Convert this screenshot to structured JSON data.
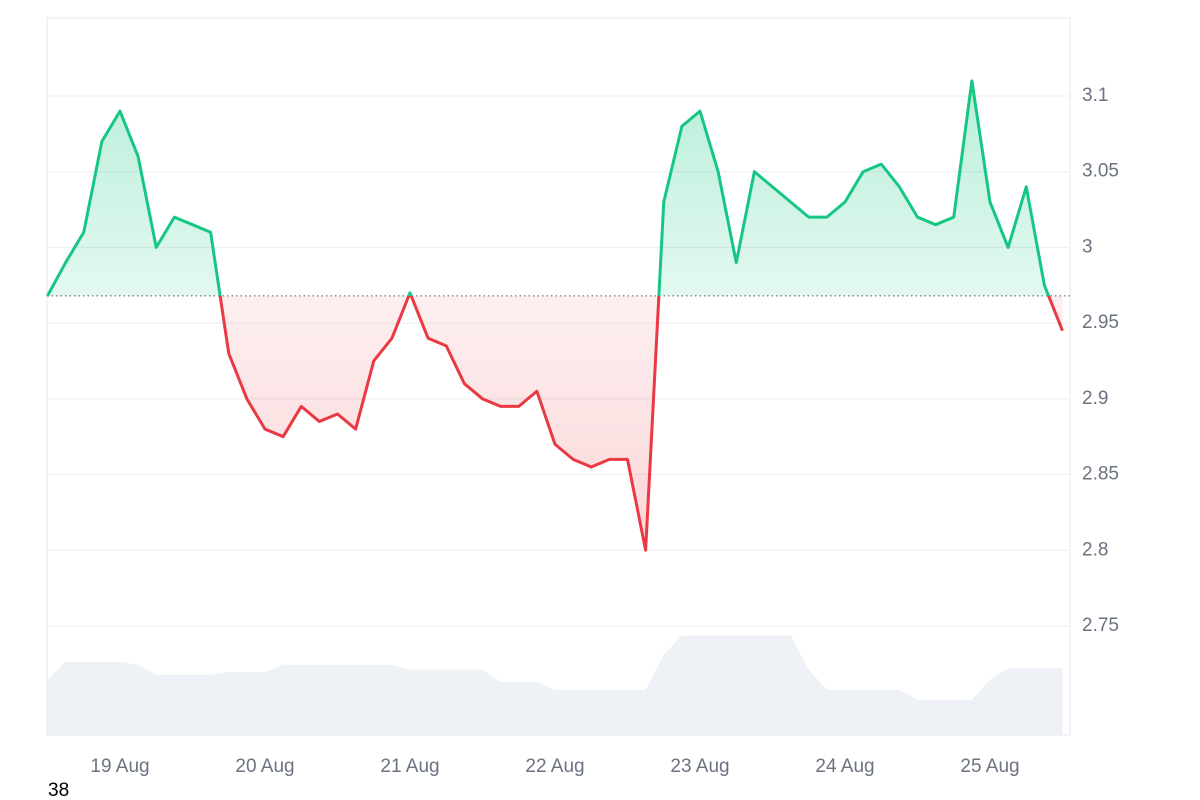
{
  "chart_data": {
    "type": "line",
    "categories": [
      null,
      null,
      null,
      null,
      "19 Aug",
      null,
      null,
      null,
      null,
      null,
      null,
      null,
      "20 Aug",
      null,
      null,
      null,
      null,
      null,
      null,
      null,
      "21 Aug",
      null,
      null,
      null,
      null,
      null,
      null,
      null,
      "22 Aug",
      null,
      null,
      null,
      null,
      null,
      null,
      null,
      "23 Aug",
      null,
      null,
      null,
      null,
      null,
      null,
      null,
      "24 Aug",
      null,
      null,
      null,
      null,
      null,
      null,
      null,
      "25 Aug",
      null,
      null,
      null,
      null
    ],
    "series": [
      {
        "color": "#16c784",
        "below_color": "#ea3943",
        "values": [
          2.968,
          2.99,
          3.01,
          3.07,
          3.09,
          3.06,
          3.0,
          3.02,
          3.015,
          3.01,
          2.93,
          2.9,
          2.88,
          2.875,
          2.895,
          2.885,
          2.89,
          2.88,
          2.925,
          2.94,
          2.97,
          2.94,
          2.935,
          2.91,
          2.9,
          2.895,
          2.895,
          2.905,
          2.87,
          2.86,
          2.855,
          2.86,
          2.86,
          2.8,
          3.03,
          3.08,
          3.09,
          3.05,
          2.99,
          3.05,
          3.04,
          3.03,
          3.02,
          3.02,
          3.03,
          3.05,
          3.055,
          3.04,
          3.02,
          3.015,
          3.02,
          3.11,
          3.03,
          3.0,
          3.04,
          2.975,
          2.945
        ]
      },
      {
        "color": "#eef1f5",
        "axis": "y2",
        "values": [
          7.7,
          10.2,
          10.2,
          10.2,
          10.2,
          9.8,
          8.4,
          8.4,
          8.4,
          8.4,
          8.8,
          8.8,
          8.8,
          9.8,
          9.8,
          9.8,
          9.8,
          9.8,
          9.8,
          9.8,
          9.1,
          9.1,
          9.1,
          9.1,
          9.1,
          7.4,
          7.4,
          7.4,
          6.3,
          6.3,
          6.3,
          6.3,
          6.3,
          6.3,
          11.2,
          13.9,
          13.9,
          13.9,
          13.9,
          13.9,
          13.9,
          13.9,
          9.1,
          6.3,
          6.3,
          6.3,
          6.3,
          6.3,
          4.9,
          4.9,
          4.9,
          4.9,
          7.7,
          9.3,
          9.3,
          9.3,
          9.3
        ]
      }
    ],
    "reference": 2.968,
    "ylim": [
      2.678,
      3.1515
    ],
    "yticks": [
      2.75,
      2.8,
      2.85,
      2.9,
      2.95,
      3.0,
      3.05,
      3.1
    ],
    "y2lim": [
      0,
      100
    ],
    "grid": true
  },
  "footer": "38"
}
